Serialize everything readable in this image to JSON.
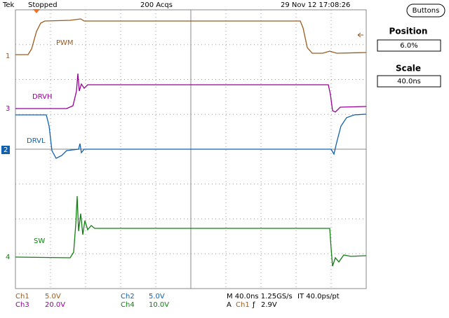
{
  "header": {
    "brand": "Tek",
    "status": "Stopped",
    "acquisitions": "200 Acqs",
    "timestamp": "29 Nov 12 17:08:26"
  },
  "menu": {
    "button": "Buttons",
    "position": {
      "label": "Position",
      "value": "6.0%"
    },
    "scale": {
      "label": "Scale",
      "value": "40.0ns"
    }
  },
  "traces": [
    {
      "marker": "1",
      "label": "PWM"
    },
    {
      "marker": "3",
      "label": "DRVH"
    },
    {
      "marker": "2",
      "label": "DRVL"
    },
    {
      "marker": "4",
      "label": "SW"
    }
  ],
  "footer": {
    "ch1": {
      "name": "Ch1",
      "scale": "5.0V"
    },
    "ch2": {
      "name": "Ch2",
      "scale": "5.0V"
    },
    "ch3": {
      "name": "Ch3",
      "scale": "20.0V"
    },
    "ch4": {
      "name": "Ch4",
      "scale": "10.0V"
    },
    "timebase": "M 40.0ns 1.25GS/s",
    "interval": "IT 40.0ps/pt",
    "trigger": {
      "mode": "A",
      "source": "Ch1",
      "slope": "ƒ",
      "level": "2.9V"
    }
  }
}
